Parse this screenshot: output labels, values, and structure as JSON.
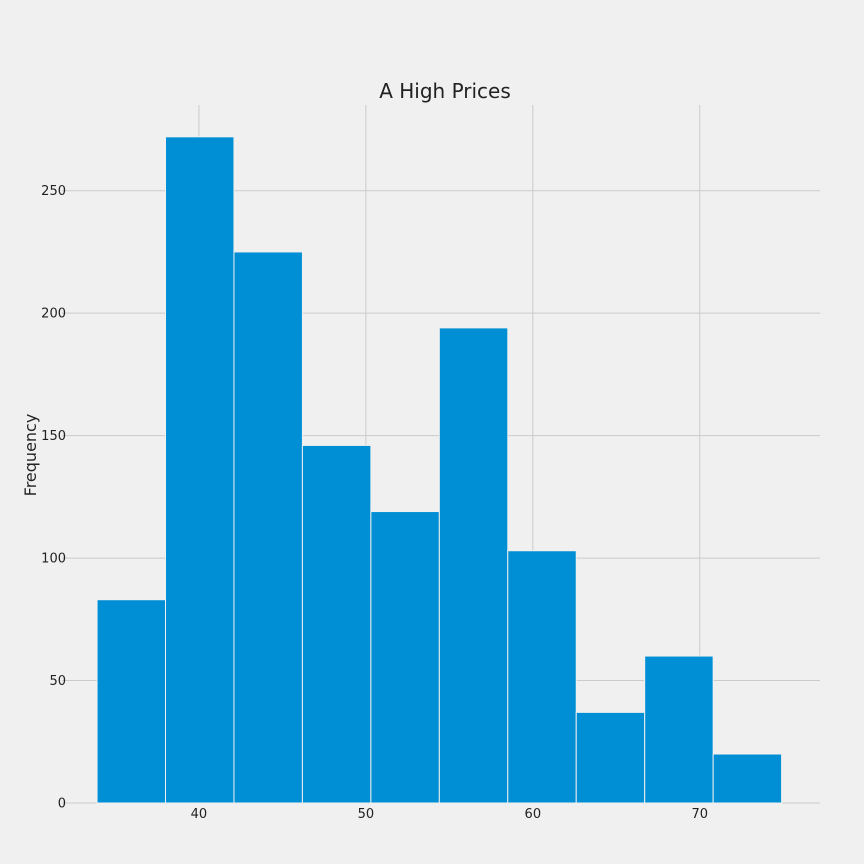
{
  "chart_data": {
    "type": "bar",
    "title": "A High Prices",
    "xlabel": "",
    "ylabel": "Frequency",
    "xlim": [
      31.8,
      77.2
    ],
    "ylim": [
      0,
      285
    ],
    "xticks": [
      40,
      50,
      60,
      70
    ],
    "yticks": [
      0,
      50,
      100,
      150,
      200,
      250
    ],
    "bins": [
      {
        "x0": 33.9,
        "x1": 38.0,
        "count": 83
      },
      {
        "x0": 38.0,
        "x1": 42.1,
        "count": 272
      },
      {
        "x0": 42.1,
        "x1": 46.2,
        "count": 225
      },
      {
        "x0": 46.2,
        "x1": 50.3,
        "count": 146
      },
      {
        "x0": 50.3,
        "x1": 54.4,
        "count": 119
      },
      {
        "x0": 54.4,
        "x1": 58.5,
        "count": 194
      },
      {
        "x0": 58.5,
        "x1": 62.6,
        "count": 103
      },
      {
        "x0": 62.6,
        "x1": 66.7,
        "count": 37
      },
      {
        "x0": 66.7,
        "x1": 70.8,
        "count": 60
      },
      {
        "x0": 70.8,
        "x1": 74.9,
        "count": 20
      }
    ],
    "grid": true,
    "colors": {
      "bar": "#008fd5",
      "bar_edge": "#f0f0f0",
      "grid": "#cbcbcb",
      "background": "#f0f0f0"
    }
  }
}
